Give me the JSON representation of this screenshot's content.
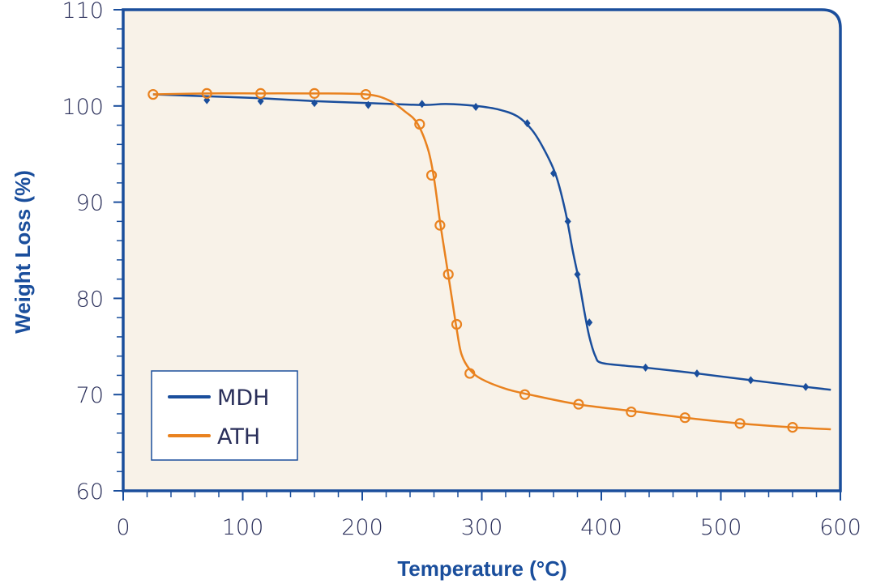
{
  "chart_data": {
    "type": "line",
    "title": "",
    "xlabel": "Temperature (°C)",
    "ylabel": "Weight Loss (%)",
    "xlim": [
      0,
      600
    ],
    "ylim": [
      60,
      110
    ],
    "xticks": [
      0,
      100,
      200,
      300,
      400,
      500,
      600
    ],
    "yticks": [
      60,
      70,
      80,
      90,
      100,
      110
    ],
    "grid": false,
    "legend_position": "bottom-left",
    "background_color": "#f8f2e8",
    "axis_color": "#1a4e9c",
    "series": [
      {
        "name": "MDH",
        "color": "#1a4e9c",
        "marker": "diamond",
        "curve": [
          [
            25,
            101.2
          ],
          [
            70,
            101.0
          ],
          [
            115,
            100.8
          ],
          [
            160,
            100.5
          ],
          [
            205,
            100.3
          ],
          [
            250,
            100.1
          ],
          [
            270,
            100.2
          ],
          [
            295,
            100.0
          ],
          [
            315,
            99.6
          ],
          [
            330,
            98.9
          ],
          [
            342,
            97.5
          ],
          [
            352,
            95.5
          ],
          [
            362,
            92.8
          ],
          [
            370,
            89.0
          ],
          [
            376,
            85.0
          ],
          [
            381,
            82.0
          ],
          [
            386,
            78.5
          ],
          [
            390,
            76.0
          ],
          [
            395,
            74.0
          ],
          [
            400,
            73.3
          ],
          [
            420,
            73.0
          ],
          [
            437,
            72.8
          ],
          [
            480,
            72.2
          ],
          [
            525,
            71.5
          ],
          [
            571,
            70.8
          ],
          [
            592,
            70.5
          ]
        ],
        "points": [
          [
            70,
            100.6
          ],
          [
            115,
            100.5
          ],
          [
            160,
            100.3
          ],
          [
            205,
            100.1
          ],
          [
            250,
            100.2
          ],
          [
            295,
            99.9
          ],
          [
            338,
            98.2
          ],
          [
            360,
            93.0
          ],
          [
            372,
            88.0
          ],
          [
            380,
            82.5
          ],
          [
            390,
            77.5
          ],
          [
            437,
            72.8
          ],
          [
            480,
            72.2
          ],
          [
            525,
            71.5
          ],
          [
            571,
            70.8
          ]
        ]
      },
      {
        "name": "ATH",
        "color": "#e9821f",
        "marker": "circle",
        "curve": [
          [
            25,
            101.2
          ],
          [
            70,
            101.3
          ],
          [
            115,
            101.3
          ],
          [
            160,
            101.3
          ],
          [
            203,
            101.2
          ],
          [
            222,
            100.6
          ],
          [
            236,
            99.4
          ],
          [
            246,
            98.2
          ],
          [
            255,
            95.5
          ],
          [
            260,
            92.5
          ],
          [
            265,
            88.0
          ],
          [
            270,
            84.0
          ],
          [
            275,
            80.0
          ],
          [
            279,
            76.8
          ],
          [
            283,
            74.2
          ],
          [
            290,
            72.6
          ],
          [
            300,
            71.6
          ],
          [
            320,
            70.6
          ],
          [
            340,
            70.0
          ],
          [
            380,
            69.0
          ],
          [
            425,
            68.3
          ],
          [
            470,
            67.6
          ],
          [
            516,
            67.0
          ],
          [
            560,
            66.6
          ],
          [
            592,
            66.4
          ]
        ],
        "points": [
          [
            25,
            101.2
          ],
          [
            70,
            101.3
          ],
          [
            115,
            101.3
          ],
          [
            160,
            101.3
          ],
          [
            203,
            101.2
          ],
          [
            248,
            98.1
          ],
          [
            258,
            92.8
          ],
          [
            265,
            87.6
          ],
          [
            272,
            82.5
          ],
          [
            279,
            77.3
          ],
          [
            290,
            72.2
          ],
          [
            336,
            70.0
          ],
          [
            381,
            69.0
          ],
          [
            425,
            68.2
          ],
          [
            470,
            67.6
          ],
          [
            516,
            67.0
          ],
          [
            560,
            66.6
          ]
        ]
      }
    ]
  }
}
